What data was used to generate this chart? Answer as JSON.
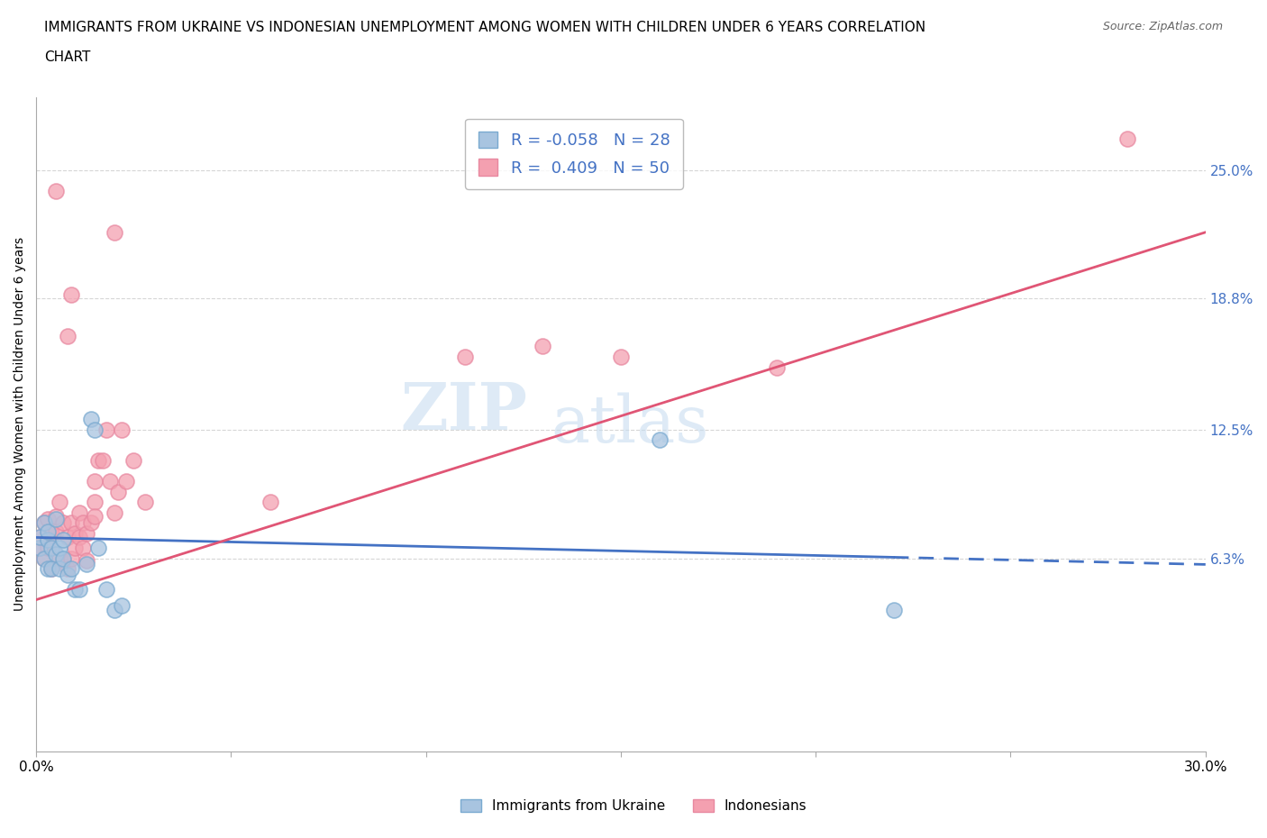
{
  "title_line1": "IMMIGRANTS FROM UKRAINE VS INDONESIAN UNEMPLOYMENT AMONG WOMEN WITH CHILDREN UNDER 6 YEARS CORRELATION",
  "title_line2": "CHART",
  "source": "Source: ZipAtlas.com",
  "ylabel": "Unemployment Among Women with Children Under 6 years",
  "xlim": [
    0.0,
    0.3
  ],
  "ylim": [
    -0.03,
    0.285
  ],
  "yticks": [
    0.063,
    0.125,
    0.188,
    0.25
  ],
  "ytick_labels": [
    "6.3%",
    "12.5%",
    "18.8%",
    "25.0%"
  ],
  "xticks": [
    0.0,
    0.05,
    0.1,
    0.15,
    0.2,
    0.25,
    0.3
  ],
  "xtick_labels": [
    "0.0%",
    "",
    "",
    "",
    "",
    "",
    "30.0%"
  ],
  "watermark_zip": "ZIP",
  "watermark_atlas": "atlas",
  "legend_r1": "R = -0.058   N = 28",
  "legend_r2": "R =  0.409   N = 50",
  "ukraine_color": "#a8c4e0",
  "indonesia_color": "#f4a0b0",
  "ukraine_edge_color": "#7aaad0",
  "indonesia_edge_color": "#e888a0",
  "ukraine_line_color": "#4472c4",
  "indonesia_line_color": "#e05575",
  "ukraine_line_solid_end": 0.22,
  "indonesia_line_solid_end": 0.3,
  "ukraine_points_x": [
    0.001,
    0.001,
    0.002,
    0.002,
    0.003,
    0.003,
    0.003,
    0.004,
    0.004,
    0.005,
    0.005,
    0.006,
    0.006,
    0.007,
    0.007,
    0.008,
    0.009,
    0.01,
    0.011,
    0.013,
    0.014,
    0.015,
    0.016,
    0.018,
    0.02,
    0.022,
    0.16,
    0.22
  ],
  "ukraine_points_y": [
    0.068,
    0.073,
    0.063,
    0.08,
    0.072,
    0.058,
    0.076,
    0.058,
    0.068,
    0.082,
    0.065,
    0.068,
    0.058,
    0.072,
    0.063,
    0.055,
    0.058,
    0.048,
    0.048,
    0.06,
    0.13,
    0.125,
    0.068,
    0.048,
    0.038,
    0.04,
    0.12,
    0.038
  ],
  "indonesia_points_x": [
    0.001,
    0.001,
    0.002,
    0.002,
    0.003,
    0.003,
    0.004,
    0.004,
    0.005,
    0.005,
    0.006,
    0.006,
    0.007,
    0.007,
    0.008,
    0.008,
    0.009,
    0.009,
    0.01,
    0.01,
    0.011,
    0.011,
    0.012,
    0.012,
    0.013,
    0.013,
    0.014,
    0.015,
    0.015,
    0.016,
    0.017,
    0.018,
    0.019,
    0.02,
    0.021,
    0.022,
    0.023,
    0.025,
    0.028,
    0.11,
    0.13,
    0.02,
    0.005,
    0.008,
    0.009,
    0.19,
    0.28,
    0.015,
    0.06,
    0.15
  ],
  "indonesia_points_y": [
    0.068,
    0.073,
    0.063,
    0.08,
    0.082,
    0.068,
    0.075,
    0.058,
    0.076,
    0.083,
    0.063,
    0.09,
    0.062,
    0.08,
    0.058,
    0.073,
    0.08,
    0.063,
    0.075,
    0.068,
    0.085,
    0.073,
    0.068,
    0.08,
    0.075,
    0.062,
    0.08,
    0.09,
    0.083,
    0.11,
    0.11,
    0.125,
    0.1,
    0.085,
    0.095,
    0.125,
    0.1,
    0.11,
    0.09,
    0.16,
    0.165,
    0.22,
    0.24,
    0.17,
    0.19,
    0.155,
    0.265,
    0.1,
    0.09,
    0.16
  ],
  "grid_color": "#cccccc",
  "background_color": "#ffffff",
  "right_tick_color": "#4472c4",
  "legend_text_color": "#4472c4",
  "legend_label_color": "#333333"
}
